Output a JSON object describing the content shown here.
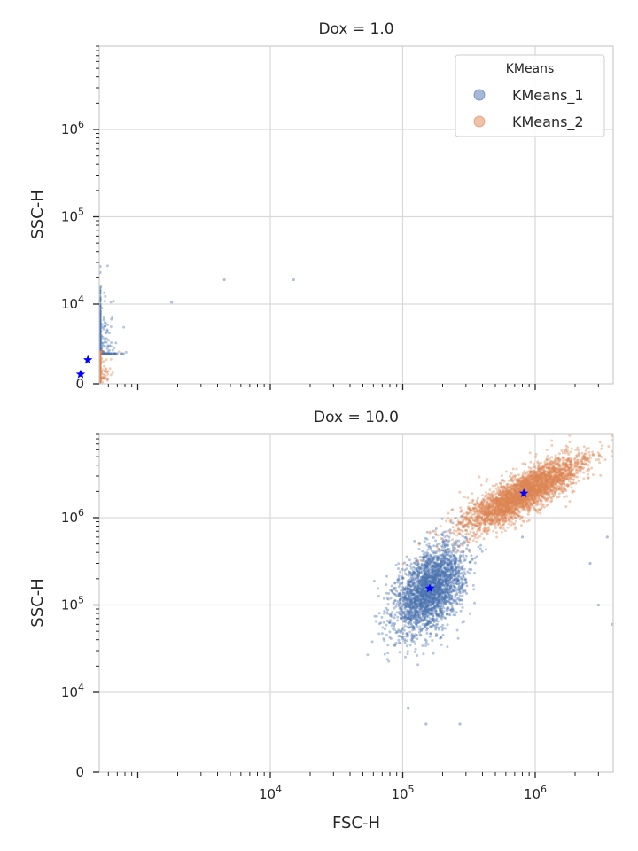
{
  "chart_data": [
    {
      "type": "scatter",
      "title": "Dox = 1.0",
      "xlabel": "",
      "ylabel": "SSC-H",
      "xscale": "symlog",
      "yscale": "symlog",
      "xlim": [
        200,
        4000000
      ],
      "ylim": [
        0,
        8000000
      ],
      "yticks": [
        {
          "base": "0",
          "exp": ""
        },
        {
          "base": "10",
          "exp": "4"
        },
        {
          "base": "10",
          "exp": "5"
        },
        {
          "base": "10",
          "exp": "6"
        }
      ],
      "xticks": [],
      "grid": true,
      "legend": {
        "title": "KMeans",
        "position": "top-right",
        "entries": [
          "KMeans_1",
          "KMeans_2"
        ]
      },
      "series": [
        {
          "name": "KMeans_1",
          "color": "#4c72b0",
          "center": [
            420,
            3000
          ],
          "spread": [
            0.09,
            0.28
          ],
          "count": 1400
        },
        {
          "name": "KMeans_2",
          "color": "#dd8452",
          "center": [
            370,
            1200
          ],
          "spread": [
            0.08,
            0.35
          ],
          "count": 1400
        }
      ],
      "outliers": [
        [
          4500,
          19000
        ],
        [
          15000,
          19000
        ],
        [
          470,
          27000
        ],
        [
          420,
          23000
        ],
        [
          1800,
          10500
        ]
      ],
      "centroids": [
        [
          420,
          3000
        ],
        [
          370,
          1200
        ]
      ],
      "centroid_color": "#0000ff"
    },
    {
      "type": "scatter",
      "title": "Dox = 10.0",
      "xlabel": "FSC-H",
      "ylabel": "SSC-H",
      "xscale": "symlog",
      "yscale": "symlog",
      "xlim": [
        200,
        4000000
      ],
      "ylim": [
        0,
        8000000
      ],
      "yticks": [
        {
          "base": "0",
          "exp": ""
        },
        {
          "base": "10",
          "exp": "4"
        },
        {
          "base": "10",
          "exp": "5"
        },
        {
          "base": "10",
          "exp": "6"
        }
      ],
      "xticks": [
        {
          "base": "10",
          "exp": "4"
        },
        {
          "base": "10",
          "exp": "5"
        },
        {
          "base": "10",
          "exp": "6"
        }
      ],
      "grid": true,
      "series": [
        {
          "name": "KMeans_1",
          "color": "#4c72b0",
          "center": [
            160000,
            150000
          ],
          "spread": [
            0.13,
            0.22
          ],
          "count": 2600
        },
        {
          "name": "KMeans_2",
          "color": "#dd8452",
          "center": [
            820000,
            1900000
          ],
          "spread": [
            0.22,
            0.18
          ],
          "count": 3200
        }
      ],
      "outliers": [
        [
          110000,
          8000
        ],
        [
          150000,
          6000
        ],
        [
          270000,
          6000
        ],
        [
          3800000,
          60000
        ],
        [
          3000000,
          100000
        ],
        [
          800000,
          600000
        ],
        [
          2600000,
          300000
        ],
        [
          3500000,
          600000
        ]
      ],
      "centroids": [
        [
          160000,
          155000
        ],
        [
          820000,
          1900000
        ]
      ],
      "centroid_color": "#0000ff"
    }
  ]
}
